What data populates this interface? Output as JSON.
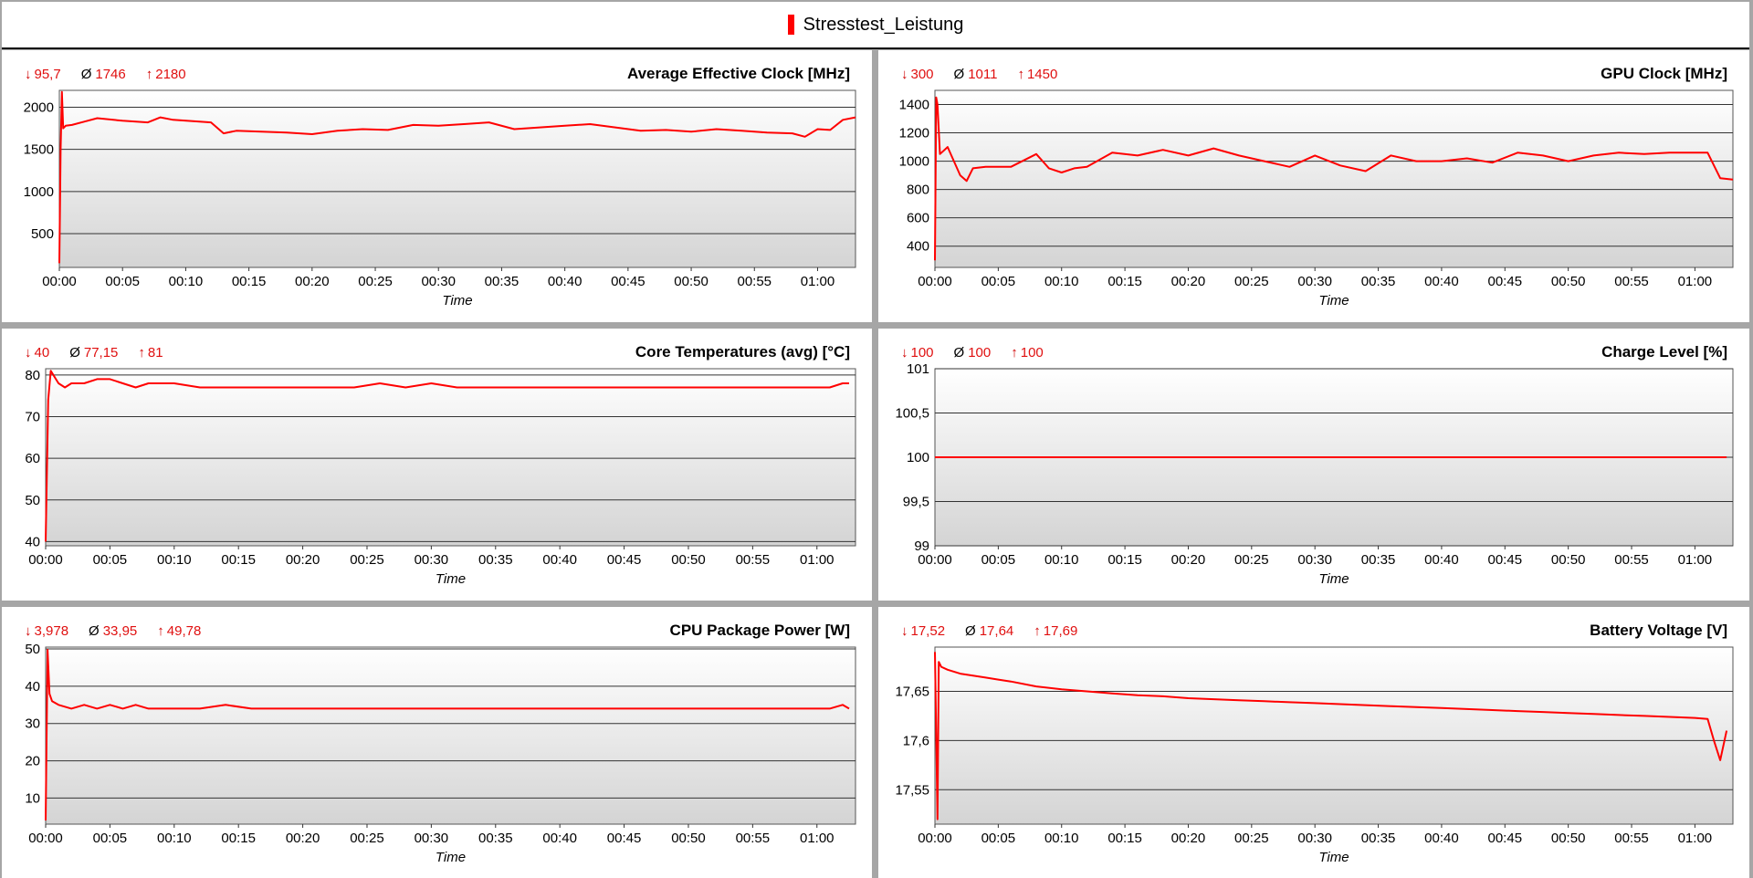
{
  "title": "Stresstest_Leistung",
  "legend_color": "#ff0000",
  "x_ticks": [
    "00:00",
    "00:05",
    "00:10",
    "00:15",
    "00:20",
    "00:25",
    "00:30",
    "00:35",
    "00:40",
    "00:45",
    "00:50",
    "00:55",
    "01:00"
  ],
  "chart_data": [
    {
      "type": "line",
      "title": "Average Effective Clock [MHz]",
      "xlabel": "Time",
      "ylabel": "",
      "stats": {
        "min": "95,7",
        "avg": "1746",
        "max": "2180"
      },
      "ylim": [
        100,
        2200
      ],
      "yticks": [
        {
          "v": 500,
          "label": "500"
        },
        {
          "v": 1000,
          "label": "1000"
        },
        {
          "v": 1500,
          "label": "1500"
        },
        {
          "v": 2000,
          "label": "2000"
        }
      ],
      "series": [
        {
          "color": "#ff0000",
          "x": [
            0,
            0.1,
            0.2,
            0.3,
            0.5,
            1,
            2,
            3,
            5,
            7,
            8,
            9,
            12,
            13,
            14,
            16,
            18,
            20,
            22,
            24,
            26,
            28,
            30,
            32,
            34,
            36,
            38,
            40,
            42,
            44,
            46,
            48,
            50,
            52,
            54,
            56,
            58,
            59,
            60,
            61,
            62,
            63
          ],
          "values": [
            150,
            1500,
            2180,
            1750,
            1780,
            1790,
            1830,
            1870,
            1840,
            1820,
            1880,
            1850,
            1820,
            1690,
            1720,
            1710,
            1700,
            1680,
            1720,
            1740,
            1730,
            1790,
            1780,
            1800,
            1820,
            1740,
            1760,
            1780,
            1800,
            1760,
            1720,
            1730,
            1710,
            1740,
            1720,
            1700,
            1690,
            1650,
            1740,
            1730,
            1850,
            1880
          ]
        }
      ]
    },
    {
      "type": "line",
      "title": "GPU Clock [MHz]",
      "xlabel": "Time",
      "ylabel": "",
      "stats": {
        "min": "300",
        "avg": "1011",
        "max": "1450"
      },
      "ylim": [
        250,
        1500
      ],
      "yticks": [
        {
          "v": 400,
          "label": "400"
        },
        {
          "v": 600,
          "label": "600"
        },
        {
          "v": 800,
          "label": "800"
        },
        {
          "v": 1000,
          "label": "1000"
        },
        {
          "v": 1200,
          "label": "1200"
        },
        {
          "v": 1400,
          "label": "1400"
        }
      ],
      "series": [
        {
          "color": "#ff0000",
          "x": [
            0,
            0.1,
            0.2,
            0.4,
            1,
            2,
            2.5,
            3,
            4,
            6,
            8,
            9,
            10,
            11,
            12,
            14,
            16,
            18,
            20,
            22,
            24,
            26,
            28,
            30,
            32,
            34,
            36,
            38,
            40,
            42,
            44,
            46,
            48,
            50,
            52,
            54,
            56,
            58,
            60,
            61,
            62,
            63
          ],
          "values": [
            300,
            1450,
            1400,
            1050,
            1100,
            900,
            860,
            950,
            960,
            960,
            1050,
            950,
            920,
            950,
            960,
            1060,
            1040,
            1080,
            1040,
            1090,
            1040,
            1000,
            960,
            1040,
            970,
            930,
            1040,
            1000,
            1000,
            1020,
            990,
            1060,
            1040,
            1000,
            1040,
            1060,
            1050,
            1060,
            1060,
            1060,
            880,
            870
          ]
        }
      ]
    },
    {
      "type": "line",
      "title": "Core Temperatures (avg) [°C]",
      "xlabel": "Time",
      "ylabel": "",
      "stats": {
        "min": "40",
        "avg": "77,15",
        "max": "81"
      },
      "ylim": [
        39,
        81.5
      ],
      "yticks": [
        {
          "v": 40,
          "label": "40"
        },
        {
          "v": 50,
          "label": "50"
        },
        {
          "v": 60,
          "label": "60"
        },
        {
          "v": 70,
          "label": "70"
        },
        {
          "v": 80,
          "label": "80"
        }
      ],
      "series": [
        {
          "color": "#ff0000",
          "x": [
            0,
            0.2,
            0.4,
            0.6,
            1,
            1.5,
            2,
            3,
            4,
            5,
            6,
            7,
            8,
            10,
            12,
            14,
            16,
            18,
            20,
            22,
            24,
            26,
            28,
            30,
            32,
            34,
            36,
            38,
            40,
            42,
            44,
            46,
            48,
            50,
            52,
            54,
            56,
            58,
            60,
            61,
            62,
            62.5
          ],
          "values": [
            40,
            74,
            81,
            80,
            78,
            77,
            78,
            78,
            79,
            79,
            78,
            77,
            78,
            78,
            77,
            77,
            77,
            77,
            77,
            77,
            77,
            78,
            77,
            78,
            77,
            77,
            77,
            77,
            77,
            77,
            77,
            77,
            77,
            77,
            77,
            77,
            77,
            77,
            77,
            77,
            78,
            78
          ]
        }
      ]
    },
    {
      "type": "line",
      "title": "Charge Level [%]",
      "xlabel": "Time",
      "ylabel": "",
      "stats": {
        "min": "100",
        "avg": "100",
        "max": "100"
      },
      "ylim": [
        99,
        101
      ],
      "yticks": [
        {
          "v": 99,
          "label": "99"
        },
        {
          "v": 99.5,
          "label": "99,5"
        },
        {
          "v": 100,
          "label": "100"
        },
        {
          "v": 100.5,
          "label": "100,5"
        },
        {
          "v": 101,
          "label": "101"
        }
      ],
      "series": [
        {
          "color": "#ff0000",
          "x": [
            0,
            62.5
          ],
          "values": [
            100,
            100
          ]
        }
      ]
    },
    {
      "type": "line",
      "title": "CPU Package Power [W]",
      "xlabel": "Time",
      "ylabel": "",
      "stats": {
        "min": "3,978",
        "avg": "33,95",
        "max": "49,78"
      },
      "ylim": [
        3,
        50.5
      ],
      "yticks": [
        {
          "v": 10,
          "label": "10"
        },
        {
          "v": 20,
          "label": "20"
        },
        {
          "v": 30,
          "label": "30"
        },
        {
          "v": 40,
          "label": "40"
        },
        {
          "v": 50,
          "label": "50"
        }
      ],
      "series": [
        {
          "color": "#ff0000",
          "x": [
            0,
            0.15,
            0.3,
            0.5,
            1,
            2,
            3,
            4,
            5,
            6,
            7,
            8,
            10,
            12,
            14,
            16,
            18,
            20,
            22,
            24,
            26,
            28,
            30,
            32,
            34,
            36,
            38,
            40,
            42,
            44,
            46,
            48,
            50,
            52,
            54,
            56,
            58,
            60,
            61,
            62,
            62.5
          ],
          "values": [
            4,
            49.8,
            38,
            36,
            35,
            34,
            35,
            34,
            35,
            34,
            35,
            34,
            34,
            34,
            35,
            34,
            34,
            34,
            34,
            34,
            34,
            34,
            34,
            34,
            34,
            34,
            34,
            34,
            34,
            34,
            34,
            34,
            34,
            34,
            34,
            34,
            34,
            34,
            34,
            35,
            34
          ]
        }
      ]
    },
    {
      "type": "line",
      "title": "Battery Voltage [V]",
      "xlabel": "Time",
      "ylabel": "",
      "stats": {
        "min": "17,52",
        "avg": "17,64",
        "max": "17,69"
      },
      "ylim": [
        17.515,
        17.695
      ],
      "yticks": [
        {
          "v": 17.55,
          "label": "17,55"
        },
        {
          "v": 17.6,
          "label": "17,6"
        },
        {
          "v": 17.65,
          "label": "17,65"
        }
      ],
      "series": [
        {
          "color": "#ff0000",
          "x": [
            0,
            0.2,
            0.3,
            0.5,
            1,
            2,
            3,
            4,
            5,
            6,
            8,
            10,
            12,
            14,
            16,
            18,
            20,
            22,
            24,
            26,
            28,
            30,
            32,
            34,
            36,
            38,
            40,
            42,
            44,
            46,
            48,
            50,
            52,
            54,
            56,
            58,
            60,
            61,
            61.5,
            62,
            62.5
          ],
          "values": [
            17.69,
            17.52,
            17.68,
            17.675,
            17.672,
            17.668,
            17.666,
            17.664,
            17.662,
            17.66,
            17.655,
            17.652,
            17.65,
            17.648,
            17.646,
            17.645,
            17.643,
            17.642,
            17.641,
            17.64,
            17.639,
            17.638,
            17.637,
            17.636,
            17.635,
            17.634,
            17.633,
            17.632,
            17.631,
            17.63,
            17.629,
            17.628,
            17.627,
            17.626,
            17.625,
            17.624,
            17.623,
            17.622,
            17.6,
            17.58,
            17.61
          ]
        }
      ]
    }
  ]
}
